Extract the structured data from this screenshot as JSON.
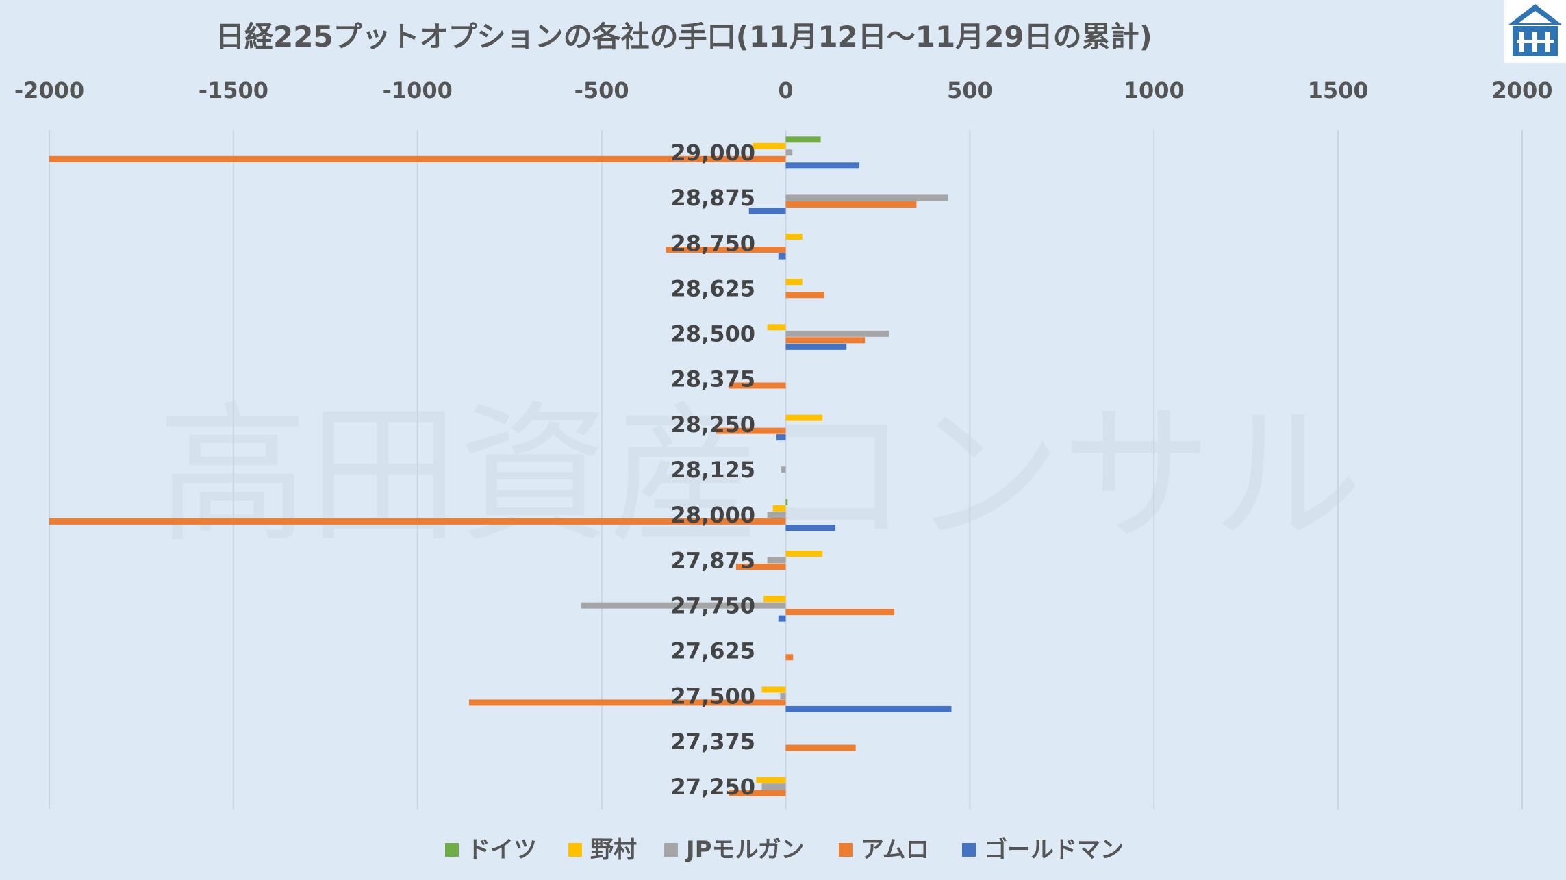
{
  "chart_data": {
    "type": "bar",
    "orientation": "horizontal",
    "title": "日経225プットオプションの各社の手口(11月12日～11月29日の累計)",
    "categories": [
      "29,000",
      "28,875",
      "28,750",
      "28,625",
      "28,500",
      "28,375",
      "28,250",
      "28,125",
      "28,000",
      "27,875",
      "27,750",
      "27,625",
      "27,500",
      "27,375",
      "27,250"
    ],
    "xlim": [
      -2000,
      2000
    ],
    "xticks": [
      "-2000",
      "-1500",
      "-1000",
      "-500",
      "0",
      "500",
      "1000",
      "1500",
      "2000"
    ],
    "grid": true,
    "legend_position": "bottom",
    "series": [
      {
        "name": "ドイツ",
        "color": "#70ad47",
        "values": [
          95,
          0,
          0,
          0,
          0,
          0,
          0,
          0,
          5,
          0,
          0,
          0,
          0,
          0,
          0
        ]
      },
      {
        "name": "野村",
        "color": "#ffc000",
        "values": [
          -90,
          0,
          45,
          45,
          -50,
          0,
          100,
          0,
          -35,
          100,
          -60,
          0,
          -65,
          0,
          -80
        ]
      },
      {
        "name": "JPモルガン",
        "color": "#a5a5a5",
        "values": [
          18,
          440,
          0,
          0,
          280,
          0,
          0,
          -12,
          -50,
          -50,
          -555,
          0,
          -15,
          0,
          -65
        ]
      },
      {
        "name": "アムロ",
        "color": "#ed7d31",
        "values": [
          -2000,
          355,
          -325,
          105,
          215,
          -155,
          -190,
          0,
          -2000,
          -135,
          295,
          20,
          -860,
          190,
          -155
        ]
      },
      {
        "name": "ゴールドマン",
        "color": "#4472c4",
        "values": [
          200,
          -100,
          -20,
          0,
          165,
          0,
          -25,
          0,
          135,
          0,
          -20,
          0,
          450,
          0,
          0
        ]
      }
    ]
  },
  "watermark": "高田資産コンサル",
  "logo_icon": "building-logo-icon"
}
